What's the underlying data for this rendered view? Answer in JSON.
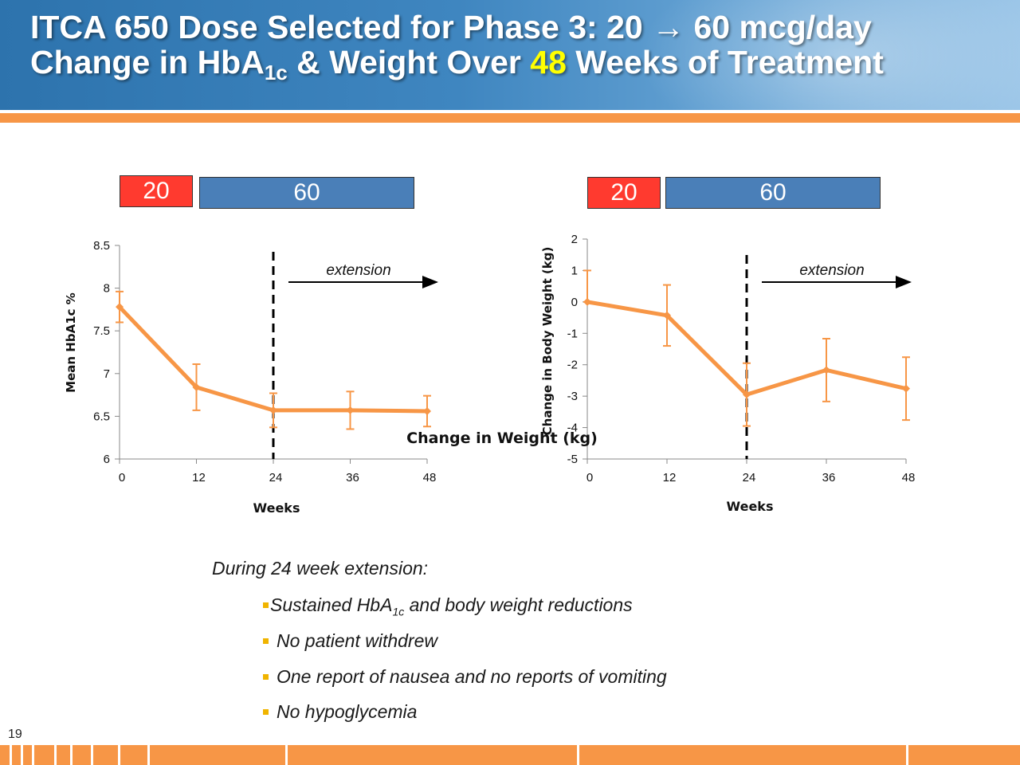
{
  "slide": {
    "title_line1": "ITCA 650 Dose Selected for Phase 3: 20 → 60 mcg/day",
    "title_line2_a": "Change in HbA",
    "title_line2_sub": "1c",
    "title_line2_b": " & Weight Over ",
    "title_line2_highlight": "48",
    "title_line2_c": " Weeks of Treatment",
    "slide_number": "19"
  },
  "colors": {
    "series": "#f79646",
    "dose_20": "#ff3a2f",
    "dose_60": "#4a7fb8",
    "highlight": "#ffff00"
  },
  "doses": {
    "left": {
      "low": "20",
      "high": "60"
    },
    "right": {
      "low": "20",
      "high": "60"
    }
  },
  "chart_data": [
    {
      "type": "line",
      "xlabel": "Weeks",
      "ylabel": "Mean HbA1c %",
      "x": [
        0,
        12,
        24,
        36,
        48
      ],
      "x_ticks": [
        0,
        12,
        24,
        36,
        48
      ],
      "y_ticks": [
        6,
        6.5,
        7,
        7.5,
        8,
        8.5
      ],
      "ylim": [
        6,
        8.5
      ],
      "xlim": [
        0,
        48
      ],
      "series": [
        {
          "values": [
            7.78,
            6.84,
            6.57,
            6.57,
            6.56
          ],
          "error_low": [
            7.6,
            6.57,
            6.37,
            6.35,
            6.38
          ],
          "error_high": [
            7.96,
            7.11,
            6.77,
            6.79,
            6.74
          ]
        }
      ],
      "annotation": {
        "text": "extension",
        "start_week": 24
      },
      "grid": false
    },
    {
      "type": "line",
      "xlabel": "Weeks",
      "ylabel": "Change in Body Weight (kg)",
      "subtitle": "Change in Weight (kg)",
      "x": [
        0,
        12,
        24,
        36,
        48
      ],
      "x_ticks": [
        0,
        12,
        24,
        36,
        48
      ],
      "y_ticks": [
        -5,
        -4,
        -3,
        -2,
        -1,
        0,
        1,
        2
      ],
      "ylim": [
        -5,
        2
      ],
      "xlim": [
        0,
        48
      ],
      "series": [
        {
          "values": [
            0,
            -0.43,
            -2.95,
            -2.17,
            -2.76
          ],
          "error_low": [
            0,
            -1.4,
            -3.95,
            -3.17,
            -3.76
          ],
          "error_high": [
            1,
            0.54,
            -1.95,
            -1.17,
            -1.76
          ]
        }
      ],
      "annotation": {
        "text": "extension",
        "start_week": 24
      },
      "grid": false
    }
  ],
  "bullets": {
    "intro": "During 24 week extension:",
    "item1_a": "Sustained HbA",
    "item1_sub": "1c",
    "item1_b": " and body  weight reductions",
    "item2": "No patient withdrew",
    "item3": "One report of nausea and no reports of vomiting",
    "item4": "No hypoglycemia"
  }
}
